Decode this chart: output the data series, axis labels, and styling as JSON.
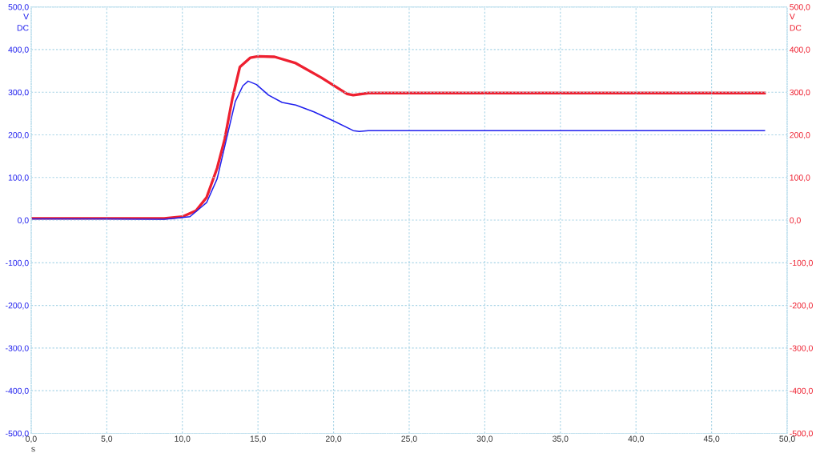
{
  "chart_data": {
    "type": "line",
    "xlabel": "s",
    "ylabel": "V\nDC",
    "y2label": "V\nDC",
    "xlim": [
      0,
      50
    ],
    "ylim": [
      -500,
      500
    ],
    "y2lim": [
      -500,
      500
    ],
    "xticks": [
      {
        "value": 0,
        "label": "0,0"
      },
      {
        "value": 5,
        "label": "5,0"
      },
      {
        "value": 10,
        "label": "10,0"
      },
      {
        "value": 15,
        "label": "15,0"
      },
      {
        "value": 20,
        "label": "20,0"
      },
      {
        "value": 25,
        "label": "25,0"
      },
      {
        "value": 30,
        "label": "30,0"
      },
      {
        "value": 35,
        "label": "35,0"
      },
      {
        "value": 40,
        "label": "40,0"
      },
      {
        "value": 45,
        "label": "45,0"
      },
      {
        "value": 50,
        "label": "50,0"
      }
    ],
    "yticks": [
      {
        "value": -500,
        "label": "-500,0"
      },
      {
        "value": -400,
        "label": "-400,0"
      },
      {
        "value": -300,
        "label": "-300,0"
      },
      {
        "value": -200,
        "label": "-200,0"
      },
      {
        "value": -100,
        "label": "-100,0"
      },
      {
        "value": 0,
        "label": "0,0"
      },
      {
        "value": 100,
        "label": "100,0"
      },
      {
        "value": 200,
        "label": "200,0"
      },
      {
        "value": 300,
        "label": "300,0"
      },
      {
        "value": 400,
        "label": "400,0"
      },
      {
        "value": 500,
        "label": "500,0"
      }
    ],
    "y2ticks": [
      {
        "value": -500,
        "label": "-500,0"
      },
      {
        "value": -400,
        "label": "-400,0"
      },
      {
        "value": -300,
        "label": "-300,0"
      },
      {
        "value": -200,
        "label": "-200,0"
      },
      {
        "value": -100,
        "label": "-100,0"
      },
      {
        "value": 0,
        "label": "0,0"
      },
      {
        "value": 100,
        "label": "100,0"
      },
      {
        "value": 200,
        "label": "200,0"
      },
      {
        "value": 300,
        "label": "300,0"
      },
      {
        "value": 400,
        "label": "400,0"
      },
      {
        "value": 500,
        "label": "500,0"
      }
    ],
    "grid": true,
    "legend": false,
    "marker": "none",
    "line_style": "solid",
    "series": [
      {
        "color": "#2020ee",
        "x": [
          0.1,
          5,
          8.8,
          10.5,
          11.6,
          12.3,
          13,
          13.5,
          14,
          14.35,
          14.9,
          15.7,
          16.6,
          17.5,
          18.7,
          20.1,
          21.3,
          21.7,
          22.3,
          30,
          40,
          48.5
        ],
        "values": [
          3,
          3,
          2,
          8,
          41,
          97,
          203,
          278,
          315,
          326,
          318,
          293,
          276,
          270,
          254,
          231,
          210,
          208,
          210,
          210,
          210,
          210
        ]
      },
      {
        "axis": "y2",
        "color": "#ee2030",
        "x": [
          0.1,
          5,
          8.8,
          10,
          10.9,
          11.6,
          12.3,
          12.8,
          13.3,
          13.8,
          14.5,
          15,
          16.1,
          17.5,
          19.2,
          20.9,
          21.3,
          22.3,
          30,
          40,
          48.5
        ],
        "values": [
          4,
          4,
          4,
          8,
          22,
          53,
          122,
          190,
          284,
          359,
          381,
          384,
          383,
          368,
          334,
          296,
          293,
          298,
          298,
          298,
          298
        ]
      }
    ]
  }
}
